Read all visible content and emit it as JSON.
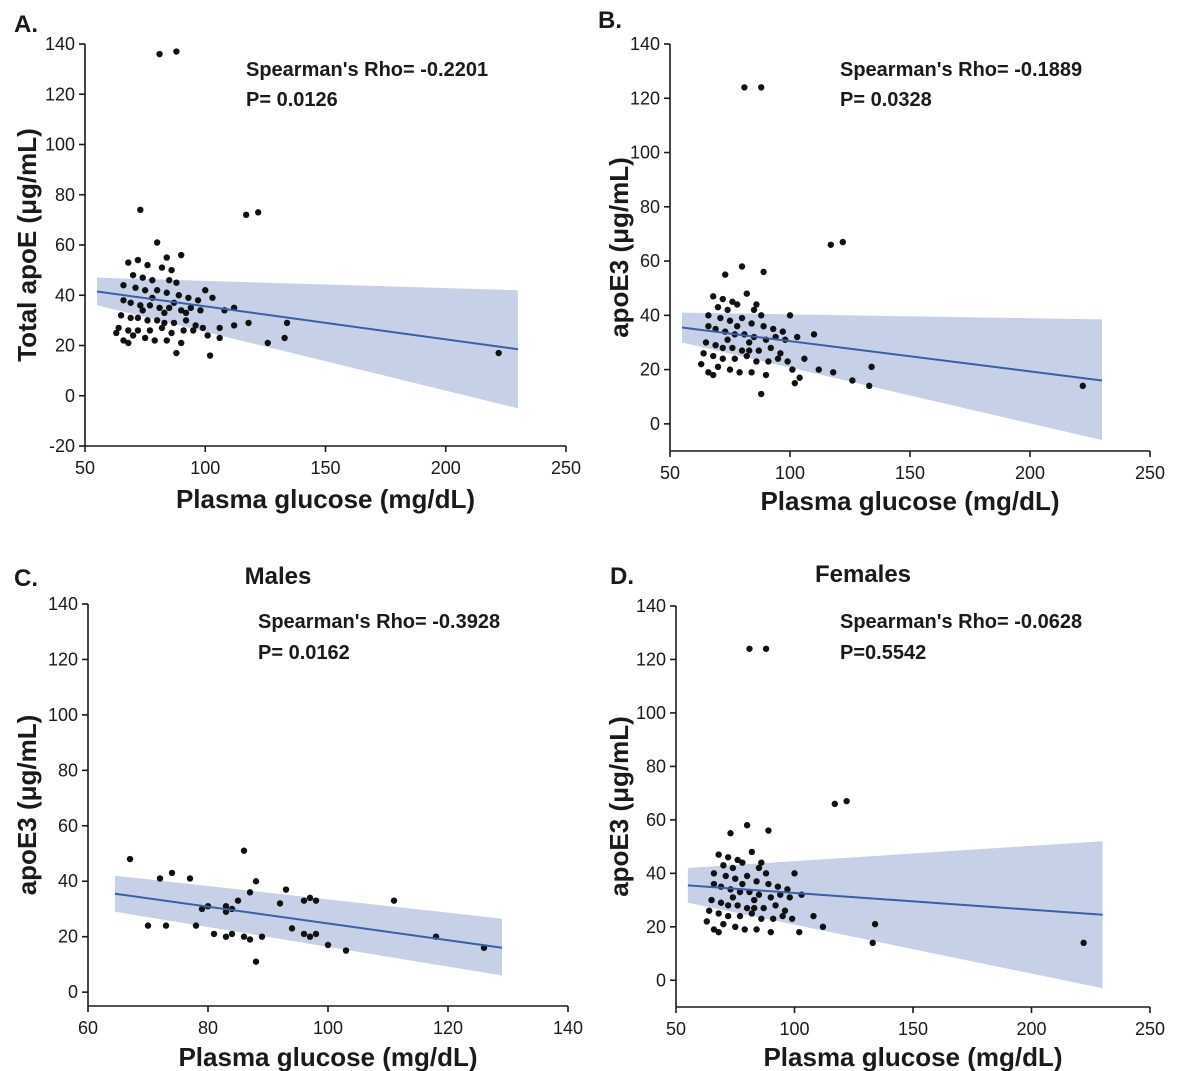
{
  "chart_data": [
    {
      "panel_label": "A.",
      "type": "scatter",
      "title": "",
      "xlabel": "Plasma glucose (mg/dL)",
      "ylabel": "Total apoE (μg/mL)",
      "xlim": [
        50,
        250
      ],
      "ylim": [
        -20,
        140
      ],
      "xticks": [
        50,
        100,
        150,
        200,
        250
      ],
      "yticks": [
        -20,
        0,
        20,
        40,
        60,
        80,
        100,
        120,
        140
      ],
      "stat_rho": "Spearman's Rho= -0.2201",
      "stat_p": "P= 0.0126",
      "fit": {
        "x": [
          55,
          230
        ],
        "y": [
          41.5,
          18.5
        ],
        "ci_low": [
          36,
          -5
        ],
        "ci_high": [
          47,
          42
        ]
      },
      "points": [
        [
          81,
          136
        ],
        [
          88,
          137
        ],
        [
          73,
          74
        ],
        [
          117,
          72
        ],
        [
          122,
          73
        ],
        [
          80,
          61
        ],
        [
          84,
          55
        ],
        [
          90,
          56
        ],
        [
          68,
          53
        ],
        [
          72,
          54
        ],
        [
          76,
          52
        ],
        [
          82,
          51
        ],
        [
          86,
          50
        ],
        [
          70,
          48
        ],
        [
          74,
          47
        ],
        [
          78,
          46
        ],
        [
          85,
          46
        ],
        [
          88,
          45
        ],
        [
          66,
          44
        ],
        [
          71,
          43
        ],
        [
          75,
          42
        ],
        [
          80,
          42
        ],
        [
          84,
          41
        ],
        [
          89,
          40
        ],
        [
          93,
          39
        ],
        [
          97,
          38
        ],
        [
          100,
          42
        ],
        [
          103,
          39
        ],
        [
          66,
          38
        ],
        [
          69,
          37
        ],
        [
          73,
          36
        ],
        [
          77,
          36
        ],
        [
          81,
          35
        ],
        [
          85,
          35
        ],
        [
          90,
          34
        ],
        [
          94,
          35
        ],
        [
          98,
          34
        ],
        [
          108,
          34
        ],
        [
          112,
          35
        ],
        [
          65,
          32
        ],
        [
          69,
          31
        ],
        [
          72,
          31
        ],
        [
          76,
          30
        ],
        [
          80,
          30
        ],
        [
          83,
          29
        ],
        [
          87,
          29
        ],
        [
          92,
          30
        ],
        [
          96,
          28
        ],
        [
          64,
          27
        ],
        [
          68,
          26
        ],
        [
          72,
          26
        ],
        [
          77,
          26
        ],
        [
          82,
          27
        ],
        [
          86,
          25
        ],
        [
          91,
          26
        ],
        [
          95,
          26
        ],
        [
          99,
          27
        ],
        [
          101,
          24
        ],
        [
          106,
          27
        ],
        [
          118,
          29
        ],
        [
          134,
          29
        ],
        [
          63,
          25
        ],
        [
          70,
          24
        ],
        [
          75,
          23
        ],
        [
          79,
          22
        ],
        [
          84,
          22
        ],
        [
          90,
          21
        ],
        [
          66,
          22
        ],
        [
          68,
          21
        ],
        [
          88,
          17
        ],
        [
          102,
          16
        ],
        [
          106,
          23
        ],
        [
          112,
          28
        ],
        [
          126,
          21
        ],
        [
          133,
          23
        ],
        [
          222,
          17
        ],
        [
          74,
          34
        ],
        [
          78,
          39
        ],
        [
          83,
          33
        ],
        [
          87,
          37
        ],
        [
          92,
          33
        ]
      ]
    },
    {
      "panel_label": "B.",
      "type": "scatter",
      "title": "",
      "xlabel": "Plasma glucose (mg/dL)",
      "ylabel": "apoE3 (μg/mL)",
      "xlim": [
        50,
        250
      ],
      "ylim": [
        -10,
        140
      ],
      "xticks": [
        50,
        100,
        150,
        200,
        250
      ],
      "yticks": [
        0,
        20,
        40,
        60,
        80,
        100,
        120,
        140
      ],
      "stat_rho": "Spearman's Rho= -0.1889",
      "stat_p": "P= 0.0328",
      "fit": {
        "x": [
          55,
          230
        ],
        "y": [
          35.5,
          16
        ],
        "ci_low": [
          30,
          -6
        ],
        "ci_high": [
          41,
          38.5
        ]
      },
      "points": [
        [
          81,
          124
        ],
        [
          88,
          124
        ],
        [
          117,
          66
        ],
        [
          122,
          67
        ],
        [
          80,
          58
        ],
        [
          89,
          56
        ],
        [
          73,
          55
        ],
        [
          68,
          47
        ],
        [
          72,
          46
        ],
        [
          76,
          45
        ],
        [
          82,
          48
        ],
        [
          86,
          44
        ],
        [
          70,
          43
        ],
        [
          74,
          42
        ],
        [
          78,
          44
        ],
        [
          85,
          42
        ],
        [
          88,
          40
        ],
        [
          66,
          40
        ],
        [
          71,
          39
        ],
        [
          75,
          38
        ],
        [
          80,
          39
        ],
        [
          84,
          37
        ],
        [
          89,
          36
        ],
        [
          93,
          35
        ],
        [
          97,
          34
        ],
        [
          100,
          40
        ],
        [
          66,
          36
        ],
        [
          69,
          35
        ],
        [
          73,
          34
        ],
        [
          77,
          33
        ],
        [
          81,
          33
        ],
        [
          85,
          32
        ],
        [
          90,
          31
        ],
        [
          94,
          32
        ],
        [
          98,
          31
        ],
        [
          103,
          32
        ],
        [
          110,
          33
        ],
        [
          65,
          30
        ],
        [
          69,
          29
        ],
        [
          72,
          28
        ],
        [
          76,
          28
        ],
        [
          80,
          27
        ],
        [
          83,
          27
        ],
        [
          87,
          27
        ],
        [
          92,
          28
        ],
        [
          96,
          26
        ],
        [
          64,
          26
        ],
        [
          68,
          25
        ],
        [
          72,
          24
        ],
        [
          77,
          24
        ],
        [
          82,
          25
        ],
        [
          86,
          23
        ],
        [
          91,
          23
        ],
        [
          95,
          24
        ],
        [
          99,
          23
        ],
        [
          101,
          20
        ],
        [
          106,
          24
        ],
        [
          63,
          22
        ],
        [
          70,
          21
        ],
        [
          75,
          20
        ],
        [
          79,
          19
        ],
        [
          84,
          19
        ],
        [
          90,
          18
        ],
        [
          66,
          19
        ],
        [
          68,
          18
        ],
        [
          88,
          11
        ],
        [
          102,
          15
        ],
        [
          104,
          17
        ],
        [
          112,
          20
        ],
        [
          118,
          19
        ],
        [
          126,
          16
        ],
        [
          133,
          14
        ],
        [
          134,
          21
        ],
        [
          222,
          14
        ],
        [
          74,
          31
        ],
        [
          78,
          36
        ],
        [
          83,
          30
        ]
      ]
    },
    {
      "panel_label": "C.",
      "type": "scatter",
      "title": "Males",
      "xlabel": "Plasma glucose (mg/dL)",
      "ylabel": "apoE3 (μg/mL)",
      "xlim": [
        60,
        140
      ],
      "ylim": [
        -5,
        140
      ],
      "xticks": [
        60,
        80,
        100,
        120,
        140
      ],
      "yticks": [
        0,
        20,
        40,
        60,
        80,
        100,
        120,
        140
      ],
      "stat_rho": "Spearman's Rho= -0.3928",
      "stat_p": "P= 0.0162",
      "fit": {
        "x": [
          64.5,
          129
        ],
        "y": [
          35.5,
          16
        ],
        "ci_low": [
          29,
          6
        ],
        "ci_high": [
          42,
          26.5
        ]
      },
      "points": [
        [
          67,
          48
        ],
        [
          72,
          41
        ],
        [
          74,
          43
        ],
        [
          77,
          41
        ],
        [
          86,
          51
        ],
        [
          88,
          40
        ],
        [
          87,
          36
        ],
        [
          93,
          37
        ],
        [
          97,
          34
        ],
        [
          96,
          33
        ],
        [
          98,
          33
        ],
        [
          111,
          33
        ],
        [
          70,
          24
        ],
        [
          73,
          24
        ],
        [
          78,
          24
        ],
        [
          79,
          30
        ],
        [
          80,
          31
        ],
        [
          83,
          29
        ],
        [
          83,
          31
        ],
        [
          84,
          30
        ],
        [
          85,
          33
        ],
        [
          81,
          21
        ],
        [
          83,
          20
        ],
        [
          84,
          21
        ],
        [
          86,
          20
        ],
        [
          87,
          19
        ],
        [
          88,
          11
        ],
        [
          89,
          20
        ],
        [
          92,
          32
        ],
        [
          94,
          23
        ],
        [
          96,
          21
        ],
        [
          97,
          20
        ],
        [
          98,
          21
        ],
        [
          100,
          17
        ],
        [
          103,
          15
        ],
        [
          118,
          20
        ],
        [
          126,
          16
        ]
      ]
    },
    {
      "panel_label": "D.",
      "type": "scatter",
      "title": "Females",
      "xlabel": "Plasma glucose (mg/dL)",
      "ylabel": "apoE3 (μg/mL)",
      "xlim": [
        50,
        250
      ],
      "ylim": [
        -10,
        140
      ],
      "xticks": [
        50,
        100,
        150,
        200,
        250
      ],
      "yticks": [
        0,
        20,
        40,
        60,
        80,
        100,
        120,
        140
      ],
      "stat_rho": "Spearman's Rho= -0.0628",
      "stat_p": "P=0.5542",
      "fit": {
        "x": [
          55,
          230
        ],
        "y": [
          35.5,
          24.5
        ],
        "ci_low": [
          29,
          -3
        ],
        "ci_high": [
          42,
          52
        ]
      },
      "points": [
        [
          81,
          124
        ],
        [
          88,
          124
        ],
        [
          117,
          66
        ],
        [
          122,
          67
        ],
        [
          80,
          58
        ],
        [
          89,
          56
        ],
        [
          73,
          55
        ],
        [
          68,
          47
        ],
        [
          72,
          46
        ],
        [
          76,
          45
        ],
        [
          82,
          48
        ],
        [
          86,
          44
        ],
        [
          70,
          43
        ],
        [
          74,
          42
        ],
        [
          78,
          44
        ],
        [
          85,
          42
        ],
        [
          88,
          40
        ],
        [
          66,
          40
        ],
        [
          71,
          39
        ],
        [
          75,
          38
        ],
        [
          80,
          39
        ],
        [
          84,
          37
        ],
        [
          89,
          36
        ],
        [
          93,
          35
        ],
        [
          97,
          34
        ],
        [
          100,
          40
        ],
        [
          66,
          36
        ],
        [
          69,
          35
        ],
        [
          73,
          34
        ],
        [
          77,
          33
        ],
        [
          81,
          33
        ],
        [
          85,
          32
        ],
        [
          90,
          31
        ],
        [
          94,
          32
        ],
        [
          98,
          31
        ],
        [
          103,
          32
        ],
        [
          65,
          30
        ],
        [
          69,
          29
        ],
        [
          72,
          28
        ],
        [
          76,
          28
        ],
        [
          80,
          27
        ],
        [
          83,
          27
        ],
        [
          87,
          27
        ],
        [
          92,
          28
        ],
        [
          96,
          26
        ],
        [
          64,
          26
        ],
        [
          68,
          25
        ],
        [
          72,
          24
        ],
        [
          77,
          24
        ],
        [
          82,
          25
        ],
        [
          86,
          23
        ],
        [
          91,
          23
        ],
        [
          95,
          24
        ],
        [
          99,
          23
        ],
        [
          63,
          22
        ],
        [
          70,
          21
        ],
        [
          75,
          20
        ],
        [
          79,
          19
        ],
        [
          84,
          19
        ],
        [
          90,
          18
        ],
        [
          66,
          19
        ],
        [
          68,
          18
        ],
        [
          102,
          18
        ],
        [
          108,
          24
        ],
        [
          112,
          20
        ],
        [
          134,
          21
        ],
        [
          133,
          14
        ],
        [
          222,
          14
        ],
        [
          74,
          31
        ],
        [
          78,
          36
        ],
        [
          83,
          30
        ]
      ]
    }
  ]
}
